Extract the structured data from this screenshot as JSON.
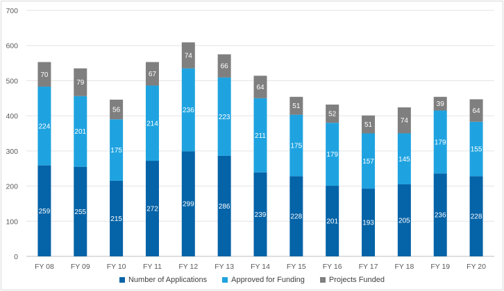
{
  "chart_data": {
    "type": "bar",
    "stacked": true,
    "categories": [
      "FY 08",
      "FY 09",
      "FY 10",
      "FY 11",
      "FY 12",
      "FY 13",
      "FY 14",
      "FY 15",
      "FY 16",
      "FY 17",
      "FY 18",
      "FY 19",
      "FY 20"
    ],
    "series": [
      {
        "name": "Number of Applications",
        "color": "#0563a7",
        "values": [
          259,
          255,
          215,
          272,
          299,
          286,
          239,
          228,
          201,
          193,
          205,
          236,
          228
        ]
      },
      {
        "name": "Approved for Funding",
        "color": "#1fa3e0",
        "values": [
          224,
          201,
          175,
          214,
          236,
          223,
          211,
          175,
          179,
          157,
          145,
          179,
          155
        ]
      },
      {
        "name": "Projects Funded",
        "color": "#7f7f7f",
        "values": [
          70,
          79,
          56,
          67,
          74,
          66,
          64,
          51,
          52,
          51,
          74,
          39,
          64
        ]
      }
    ],
    "ylim": [
      0,
      700
    ],
    "yticks": [
      "0",
      "100",
      "200",
      "300",
      "400",
      "500",
      "600",
      "700"
    ],
    "grid": true,
    "legend": "bottom-center"
  }
}
